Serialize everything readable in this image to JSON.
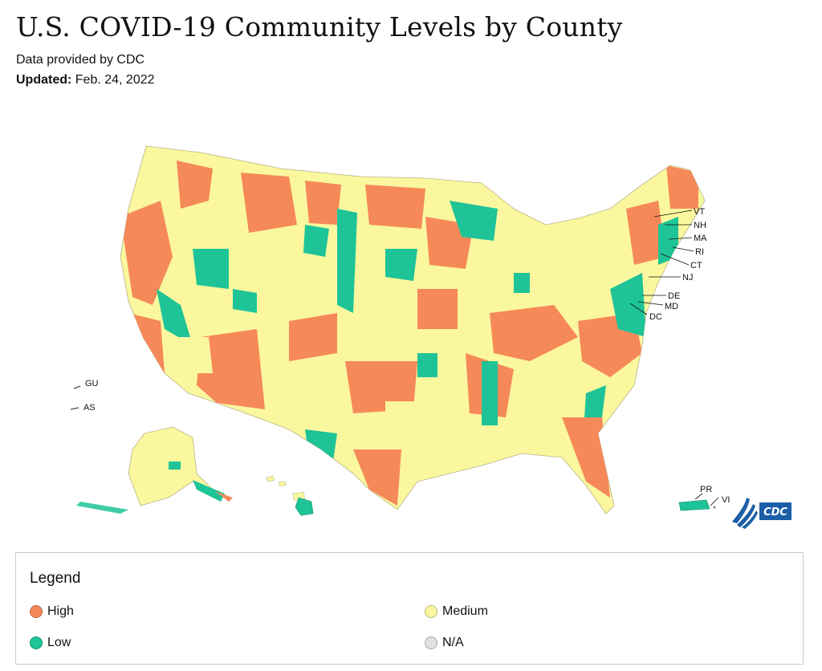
{
  "header": {
    "title": "U.S. COVID-19 Community Levels by County",
    "source": "Data provided by CDC",
    "updated_label": "Updated:",
    "updated_value": "Feb. 24, 2022"
  },
  "map": {
    "colors": {
      "high": "#f5895a",
      "medium": "#fbf79e",
      "low": "#1ec497",
      "na": "#e0e0e0"
    },
    "state_labels": [
      "VT",
      "NH",
      "MA",
      "RI",
      "CT",
      "NJ",
      "DE",
      "MD",
      "DC",
      "GU",
      "AS",
      "PR",
      "VI"
    ],
    "logo_text": "CDC"
  },
  "legend": {
    "title": "Legend",
    "items": [
      {
        "label": "High",
        "color": "#f5895a"
      },
      {
        "label": "Medium",
        "color": "#fbf79e"
      },
      {
        "label": "Low",
        "color": "#1ec497"
      },
      {
        "label": "N/A",
        "color": "#e0e0e0"
      }
    ]
  }
}
